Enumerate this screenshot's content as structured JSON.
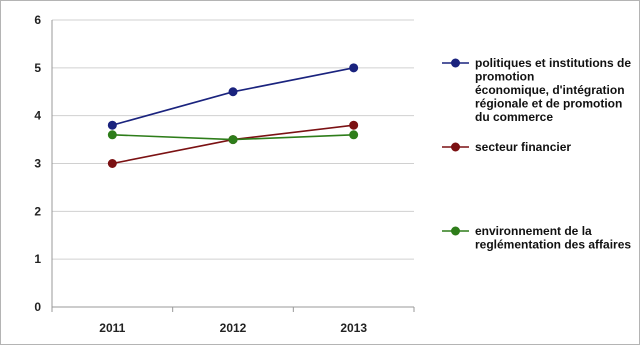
{
  "chart_data": {
    "type": "line",
    "categories": [
      "2011",
      "2012",
      "2013"
    ],
    "ylim": [
      0,
      6
    ],
    "yticks": [
      "0",
      "1",
      "2",
      "3",
      "4",
      "5",
      "6"
    ],
    "grid": true,
    "legend_position": "right",
    "series": [
      {
        "name": "politiques et institutions de promotion économique, d'intégration régionale et de promotion du commerce",
        "legend_lines": [
          "politiques et institutions de",
          "promotion",
          "économique, d'intégration",
          "régionale et de promotion",
          "du commerce"
        ],
        "values": [
          3.8,
          4.5,
          5.0
        ],
        "color": "#1a237e"
      },
      {
        "name": "secteur financier",
        "legend_lines": [
          "secteur financier"
        ],
        "values": [
          3.0,
          3.5,
          3.8
        ],
        "color": "#7b1113"
      },
      {
        "name": "environnement de la reglémentation des affaires",
        "legend_lines": [
          "environnement de la",
          "reglémentation des affaires"
        ],
        "values": [
          3.6,
          3.5,
          3.6
        ],
        "color": "#2e7d1a"
      }
    ]
  }
}
